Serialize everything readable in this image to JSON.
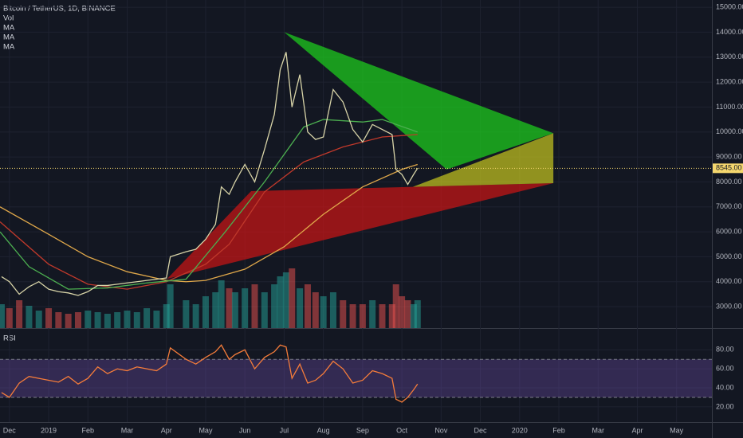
{
  "chart_data": {
    "type": "line",
    "title": "Bitcoin / TetherUS, 1D, BINANCE",
    "legend_labels": [
      "Vol",
      "MA",
      "MA",
      "MA"
    ],
    "xlim": [
      -0.24,
      17.9
    ],
    "xticks": [
      {
        "value": 0,
        "label": "Dec"
      },
      {
        "value": 1,
        "label": "2019"
      },
      {
        "value": 2,
        "label": "Feb"
      },
      {
        "value": 3,
        "label": "Mar"
      },
      {
        "value": 4,
        "label": "Apr"
      },
      {
        "value": 5,
        "label": "May"
      },
      {
        "value": 6,
        "label": "Jun"
      },
      {
        "value": 7,
        "label": "Jul"
      },
      {
        "value": 8,
        "label": "Aug"
      },
      {
        "value": 9,
        "label": "Sep"
      },
      {
        "value": 10,
        "label": "Oct"
      },
      {
        "value": 11,
        "label": "Nov"
      },
      {
        "value": 12,
        "label": "Dec"
      },
      {
        "value": 13,
        "label": "2020"
      },
      {
        "value": 14,
        "label": "Feb"
      },
      {
        "value": 15,
        "label": "Mar"
      },
      {
        "value": 16,
        "label": "Apr"
      },
      {
        "value": 17,
        "label": "May"
      }
    ],
    "ylim": [
      2140,
      15290
    ],
    "yticks": [
      {
        "value": 15000,
        "label": "15000.00"
      },
      {
        "value": 14000,
        "label": "14000.00"
      },
      {
        "value": 13000,
        "label": "13000.00"
      },
      {
        "value": 12000,
        "label": "12000.00"
      },
      {
        "value": 11000,
        "label": "11000.00"
      },
      {
        "value": 10000,
        "label": "10000.00"
      },
      {
        "value": 9000,
        "label": "9000.00"
      },
      {
        "value": 8000,
        "label": "8000.00"
      },
      {
        "value": 7000,
        "label": "7000.00"
      },
      {
        "value": 6000,
        "label": "6000.00"
      },
      {
        "value": 5000,
        "label": "5000.00"
      },
      {
        "value": 4000,
        "label": "4000.00"
      },
      {
        "value": 3000,
        "label": "3000.00"
      }
    ],
    "last_price": {
      "value": 8545,
      "label": "8545.00",
      "color": "#f5d76e"
    },
    "series": [
      {
        "name": "Bitcoin / TetherUS",
        "color": "#d8d4a8",
        "x": [
          -0.2,
          0,
          0.25,
          0.5,
          0.75,
          1,
          1.25,
          1.5,
          1.75,
          2,
          2.25,
          2.5,
          2.75,
          3,
          3.25,
          3.5,
          3.75,
          4,
          4.1,
          4.5,
          4.75,
          5,
          5.25,
          5.4,
          5.6,
          5.75,
          6,
          6.25,
          6.5,
          6.75,
          6.9,
          7.05,
          7.2,
          7.4,
          7.6,
          7.8,
          8,
          8.25,
          8.5,
          8.75,
          9,
          9.25,
          9.5,
          9.75,
          9.85,
          10,
          10.15,
          10.3,
          10.4
        ],
        "values": [
          4200,
          4000,
          3500,
          3800,
          4000,
          3700,
          3600,
          3550,
          3450,
          3600,
          3850,
          3850,
          3900,
          3950,
          4000,
          4050,
          4100,
          4150,
          5000,
          5200,
          5300,
          5700,
          6300,
          7800,
          7500,
          8000,
          8700,
          8000,
          9300,
          10700,
          12500,
          13200,
          11000,
          12300,
          10000,
          9700,
          9800,
          11700,
          11200,
          10100,
          9600,
          10300,
          10100,
          9900,
          8500,
          8300,
          7900,
          8300,
          8545
        ]
      },
      {
        "name": "MA",
        "color": "#e0a84a",
        "x": [
          -0.24,
          1,
          2,
          3,
          4,
          4.5,
          5,
          6,
          7,
          8,
          9,
          10,
          10.4
        ],
        "values": [
          7000,
          5900,
          5000,
          4400,
          4050,
          4000,
          4050,
          4500,
          5400,
          6700,
          7800,
          8500,
          8700
        ]
      },
      {
        "name": "MA",
        "color": "#c0392b",
        "x": [
          -0.24,
          1,
          2,
          3,
          4,
          5,
          5.6,
          6.5,
          7.5,
          8.5,
          9.5,
          10.4
        ],
        "values": [
          6400,
          4700,
          3900,
          3700,
          4000,
          4700,
          5500,
          7600,
          8800,
          9400,
          9800,
          9900
        ]
      },
      {
        "name": "MA",
        "color": "#4caf50",
        "x": [
          -0.24,
          0.5,
          1.5,
          2.5,
          3.5,
          4.5,
          5.5,
          6.5,
          7.5,
          8,
          9,
          9.5,
          10.4
        ],
        "values": [
          6000,
          4600,
          3700,
          3750,
          3950,
          4100,
          6000,
          8000,
          10200,
          10500,
          10400,
          10500,
          10000
        ]
      }
    ],
    "volume": {
      "color_up": "#26a69a",
      "color_down": "#ef5350",
      "vlim": [
        0,
        100
      ],
      "values": [
        30,
        25,
        35,
        28,
        22,
        25,
        20,
        18,
        20,
        22,
        20,
        18,
        20,
        22,
        20,
        25,
        22,
        30,
        55,
        35,
        30,
        40,
        45,
        60,
        50,
        45,
        50,
        55,
        45,
        55,
        65,
        70,
        75,
        50,
        55,
        45,
        40,
        45,
        35,
        30,
        30,
        35,
        30,
        30,
        55,
        40,
        35,
        30,
        35
      ]
    },
    "shapes": [
      {
        "color": "rgba(220,20,20,0.65)",
        "x": [
          4.02,
          6.16,
          13.86
        ],
        "y": [
          4116,
          7630,
          7950
        ]
      },
      {
        "color": "rgba(200,200,30,0.7)",
        "x": [
          10.28,
          13.86,
          13.86
        ],
        "y": [
          7800,
          9950,
          7950
        ]
      },
      {
        "color": "rgba(30,200,30,0.75)",
        "x": [
          7.0,
          11.14,
          13.86
        ],
        "y": [
          14000,
          8500,
          9950
        ]
      }
    ],
    "rsi": {
      "title": "RSI",
      "color": "#f57c3a",
      "band_color": "rgba(126,87,194,0.3)",
      "band": [
        30,
        70
      ],
      "ylim": [
        4,
        102
      ],
      "yticks": [
        {
          "value": 80,
          "label": "80.00"
        },
        {
          "value": 60,
          "label": "60.00"
        },
        {
          "value": 40,
          "label": "40.00"
        },
        {
          "value": 20,
          "label": "20.00"
        }
      ],
      "x": [
        -0.2,
        0,
        0.25,
        0.5,
        0.75,
        1,
        1.25,
        1.5,
        1.75,
        2,
        2.25,
        2.5,
        2.75,
        3,
        3.25,
        3.5,
        3.75,
        4,
        4.1,
        4.5,
        4.75,
        5,
        5.25,
        5.4,
        5.6,
        5.75,
        6,
        6.25,
        6.5,
        6.75,
        6.9,
        7.05,
        7.2,
        7.4,
        7.6,
        7.8,
        8,
        8.25,
        8.5,
        8.75,
        9,
        9.25,
        9.5,
        9.75,
        9.85,
        10,
        10.15,
        10.3,
        10.4
      ],
      "values": [
        35,
        30,
        45,
        52,
        50,
        48,
        46,
        52,
        44,
        50,
        62,
        55,
        60,
        58,
        62,
        60,
        58,
        65,
        82,
        70,
        65,
        72,
        78,
        85,
        70,
        75,
        80,
        60,
        72,
        78,
        85,
        83,
        50,
        65,
        45,
        48,
        55,
        68,
        60,
        45,
        48,
        58,
        55,
        50,
        28,
        25,
        30,
        38,
        44
      ]
    }
  }
}
